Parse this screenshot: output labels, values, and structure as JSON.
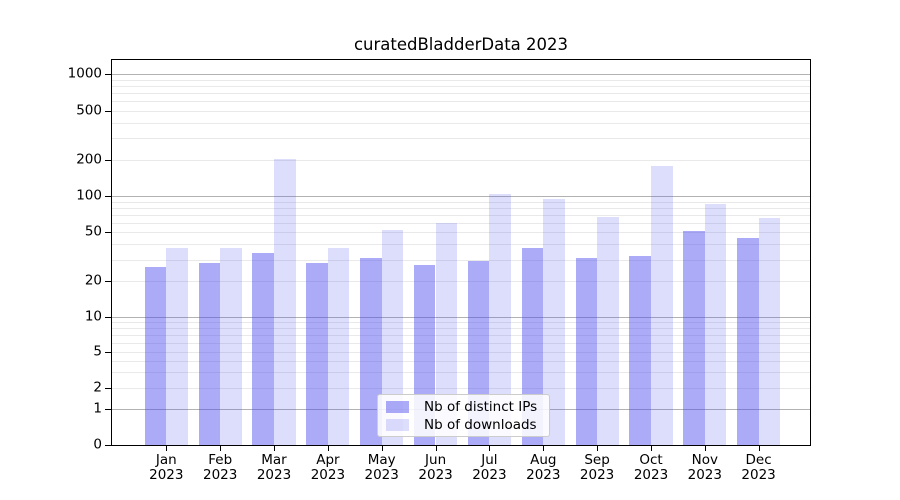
{
  "title": "curatedBladderData 2023",
  "colors": {
    "ips_fill": "rgba(68,68,238,0.45)",
    "downloads_fill": "rgba(68,68,238,0.18)",
    "major_grid": "#b2b2b2",
    "minor_grid": "#e9e9e9",
    "spine": "#000000",
    "legend_border": "#cccccc"
  },
  "legend": {
    "items": [
      {
        "label": "Nb of distinct IPs"
      },
      {
        "label": "Nb of downloads"
      }
    ]
  },
  "chart_data": {
    "type": "bar",
    "title": "curatedBladderData 2023",
    "categories": [
      "Jan 2023",
      "Feb 2023",
      "Mar 2023",
      "Apr 2023",
      "May 2023",
      "Jun 2023",
      "Jul 2023",
      "Aug 2023",
      "Sep 2023",
      "Oct 2023",
      "Nov 2023",
      "Dec 2023"
    ],
    "series": [
      {
        "name": "Nb of distinct IPs",
        "values": [
          26,
          28,
          34,
          28,
          31,
          27,
          29,
          37,
          31,
          32,
          51,
          45
        ]
      },
      {
        "name": "Nb of downloads",
        "values": [
          37,
          37,
          204,
          37,
          52,
          60,
          104,
          94,
          67,
          178,
          85,
          65
        ]
      }
    ],
    "xlabel": "",
    "ylabel": "",
    "yscale": "symlog",
    "ylim": [
      0,
      1000
    ],
    "yticks": [
      0,
      1,
      2,
      5,
      10,
      20,
      50,
      100,
      200,
      500,
      1000
    ],
    "minor_grid_values": [
      2,
      3,
      4,
      5,
      6,
      7,
      8,
      9,
      20,
      30,
      40,
      50,
      60,
      70,
      80,
      90,
      200,
      300,
      400,
      500,
      600,
      700,
      800,
      900
    ],
    "major_grid_values": [
      1,
      10,
      100,
      1000
    ],
    "grid": "horizontal major+minor",
    "legend_position": "lower center"
  }
}
